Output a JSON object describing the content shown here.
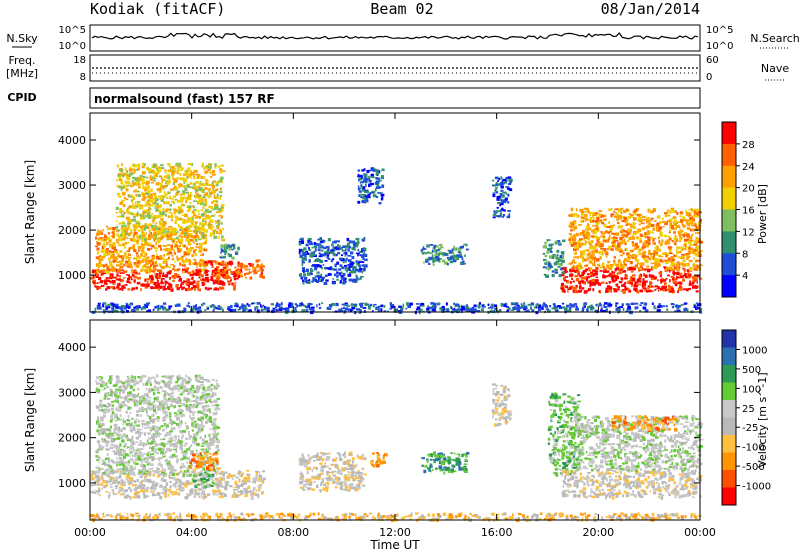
{
  "header": {
    "station": "Kodiak (fitACF)",
    "beam": "Beam 02",
    "date": "08/Jan/2014"
  },
  "top_panel": {
    "left_label": "N.Sky",
    "right_label": "N.Search",
    "left_ticks": [
      "10^5",
      "10^0"
    ],
    "right_ticks": [
      "10^5",
      "10^0"
    ]
  },
  "freq_panel": {
    "left_label": "Freq.",
    "left_unit": "[MHz]",
    "right_label": "Nave",
    "left_ticks": [
      "18",
      "8"
    ],
    "right_ticks": [
      "60",
      "0"
    ]
  },
  "cpid": {
    "label": "CPID",
    "value": "normalsound (fast) 157 RF"
  },
  "colors": {
    "power": [
      "#0000ff",
      "#1f4fd6",
      "#2f8f6f",
      "#7fbf5f",
      "#f0d000",
      "#ffa000",
      "#ff6000",
      "#ff0000"
    ],
    "velocity": [
      "#ff0000",
      "#ff5000",
      "#ff9500",
      "#ffc040",
      "#b9b9b9",
      "#c8c8c8",
      "#66c936",
      "#2c9a55",
      "#2a6fb0",
      "#2233aa"
    ]
  },
  "chart_data": [
    {
      "type": "heatmap",
      "name": "power",
      "xlabel": "",
      "ylabel": "Slant Range [km]",
      "xlim": [
        0,
        24
      ],
      "ylim": [
        180,
        4600
      ],
      "yticks": [
        "1000",
        "2000",
        "3000",
        "4000"
      ],
      "xticks": [],
      "colorbar": {
        "label": "Power [dB]",
        "ticks": [
          "4",
          "8",
          "12",
          "16",
          "20",
          "24",
          "28"
        ]
      },
      "regions": [
        {
          "t0": 0.0,
          "t1": 5.8,
          "r0": 700,
          "r1": 1150,
          "level": 7
        },
        {
          "t0": 0.2,
          "t1": 4.5,
          "r0": 1100,
          "r1": 2100,
          "level": 5
        },
        {
          "t0": 1.0,
          "t1": 5.2,
          "r0": 1800,
          "r1": 3500,
          "level": 4
        },
        {
          "t0": 4.5,
          "t1": 6.8,
          "r0": 950,
          "r1": 1350,
          "level": 6
        },
        {
          "t0": 5.0,
          "t1": 5.8,
          "r0": 1400,
          "r1": 1700,
          "level": 2
        },
        {
          "t0": 8.2,
          "t1": 10.8,
          "r0": 850,
          "r1": 1850,
          "level": 1
        },
        {
          "t0": 10.5,
          "t1": 11.5,
          "r0": 2600,
          "r1": 3400,
          "level": 1
        },
        {
          "t0": 13.0,
          "t1": 14.8,
          "r0": 1250,
          "r1": 1700,
          "level": 2
        },
        {
          "t0": 15.8,
          "t1": 16.5,
          "r0": 2300,
          "r1": 3200,
          "level": 1
        },
        {
          "t0": 17.8,
          "t1": 18.6,
          "r0": 1000,
          "r1": 1800,
          "level": 2
        },
        {
          "t0": 18.5,
          "t1": 24.0,
          "r0": 650,
          "r1": 1200,
          "level": 7
        },
        {
          "t0": 18.8,
          "t1": 24.0,
          "r0": 1150,
          "r1": 2500,
          "level": 5
        },
        {
          "t0": 0.0,
          "t1": 24.0,
          "r0": 200,
          "r1": 400,
          "level": 1
        }
      ]
    },
    {
      "type": "heatmap",
      "name": "velocity",
      "xlabel": "Time UT",
      "ylabel": "Slant Range [km]",
      "xlim": [
        0,
        24
      ],
      "ylim": [
        180,
        4600
      ],
      "yticks": [
        "1000",
        "2000",
        "3000",
        "4000"
      ],
      "xticks": [
        "00:00",
        "04:00",
        "08:00",
        "12:00",
        "16:00",
        "20:00",
        "00:00"
      ],
      "colorbar": {
        "label": "Velocity [m s^-1]",
        "ticks": [
          "1000",
          "500",
          "100",
          "25",
          "-25",
          "-100",
          "-500",
          "-1000"
        ]
      },
      "regions": [
        {
          "t0": 0.0,
          "t1": 6.8,
          "r0": 700,
          "r1": 1300,
          "level": 4
        },
        {
          "t0": 0.2,
          "t1": 5.0,
          "r0": 1200,
          "r1": 3400,
          "level": 5
        },
        {
          "t0": 3.8,
          "t1": 5.0,
          "r0": 1300,
          "r1": 1700,
          "level": 2
        },
        {
          "t0": 4.0,
          "t1": 4.8,
          "r0": 900,
          "r1": 1250,
          "level": 6
        },
        {
          "t0": 8.2,
          "t1": 10.8,
          "r0": 850,
          "r1": 1700,
          "level": 4
        },
        {
          "t0": 11.0,
          "t1": 11.6,
          "r0": 1400,
          "r1": 1700,
          "level": 2
        },
        {
          "t0": 13.0,
          "t1": 14.8,
          "r0": 1250,
          "r1": 1700,
          "level": 7
        },
        {
          "t0": 15.8,
          "t1": 16.5,
          "r0": 2300,
          "r1": 3200,
          "level": 4
        },
        {
          "t0": 18.0,
          "t1": 19.2,
          "r0": 1200,
          "r1": 3000,
          "level": 6
        },
        {
          "t0": 18.5,
          "t1": 24.0,
          "r0": 700,
          "r1": 1300,
          "level": 4
        },
        {
          "t0": 19.0,
          "t1": 24.0,
          "r0": 1300,
          "r1": 2500,
          "level": 5
        },
        {
          "t0": 20.5,
          "t1": 23.0,
          "r0": 2200,
          "r1": 2500,
          "level": 2
        },
        {
          "t0": 0.0,
          "t1": 24.0,
          "r0": 200,
          "r1": 350,
          "level": 3
        }
      ]
    }
  ]
}
